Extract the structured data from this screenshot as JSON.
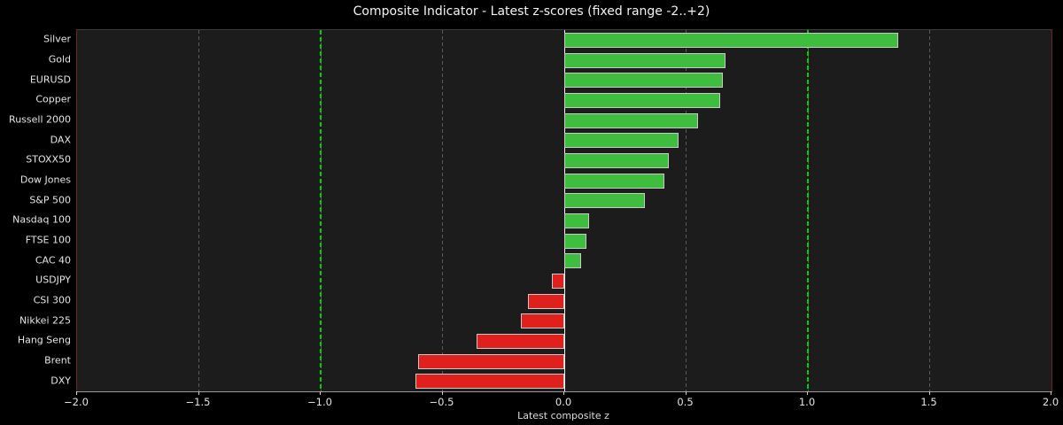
{
  "chart_data": {
    "type": "bar",
    "orientation": "horizontal",
    "title": "Composite Indicator - Latest z-scores (fixed range -2..+2)",
    "xlabel": "Latest composite z",
    "categories": [
      "Silver",
      "Gold",
      "EURUSD",
      "Copper",
      "Russell 2000",
      "DAX",
      "STOXX50",
      "Dow Jones",
      "S&P 500",
      "Nasdaq 100",
      "FTSE 100",
      "CAC 40",
      "USDJPY",
      "CSI 300",
      "Nikkei 225",
      "Hang Seng",
      "Brent",
      "DXY"
    ],
    "values": [
      1.37,
      0.66,
      0.65,
      0.64,
      0.55,
      0.47,
      0.43,
      0.41,
      0.33,
      0.1,
      0.09,
      0.07,
      -0.05,
      -0.15,
      -0.18,
      -0.36,
      -0.6,
      -0.61
    ],
    "xlim": [
      -2.0,
      2.0
    ],
    "xticks": [
      -2.0,
      -1.5,
      -1.0,
      -0.5,
      0.0,
      0.5,
      1.0,
      1.5,
      2.0
    ],
    "xtick_labels": [
      "−2.0",
      "−1.5",
      "−1.0",
      "−0.5",
      "0.0",
      "0.5",
      "1.0",
      "1.5",
      "2.0"
    ],
    "threshold_lines": [
      -1.0,
      1.0
    ],
    "zero_line": 0.0,
    "grid": "vertical-dashed",
    "legend_position": "none",
    "colors": {
      "figure_background": "#000000",
      "plot_background": "#1c1c1c",
      "positive_bar": "#3ebd3e",
      "negative_bar": "#df201c",
      "bar_edge": "#c9c9c9",
      "threshold_line": "#00cf00",
      "zero_line": "#efefef",
      "gridline": "#5a5a5a",
      "spine_sides": "#6e2424",
      "text": "#e5e5e5"
    }
  }
}
